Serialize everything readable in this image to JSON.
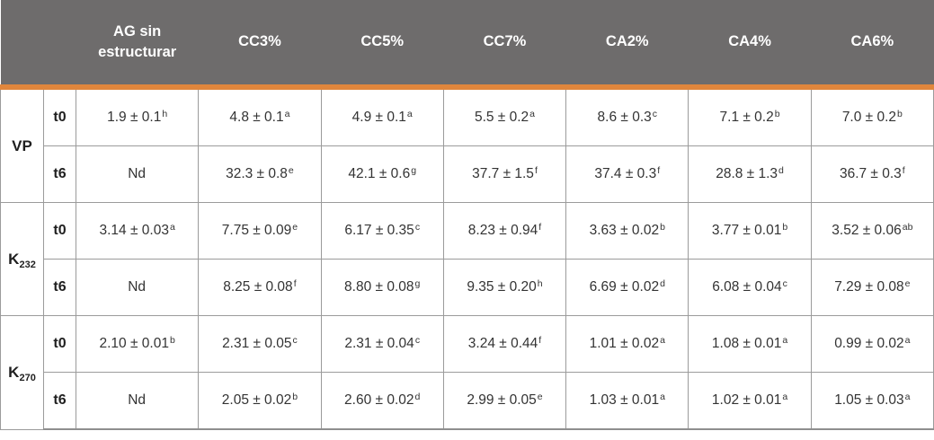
{
  "colors": {
    "header_bg": "#6E6C6C",
    "header_text": "#FFFFFF",
    "accent_band": "#E0863C",
    "grid_border": "#9B9B9B",
    "body_text": "#333333"
  },
  "chart_data": {
    "type": "table",
    "columns": [
      "AG sin estructurar",
      "CC3%",
      "CC5%",
      "CC7%",
      "CA2%",
      "CA4%",
      "CA6%"
    ],
    "row_groups": [
      {
        "name": "VP",
        "sub": "",
        "rows": [
          {
            "time": "t0",
            "cells": [
              {
                "v": "1.9 ± 0.1",
                "s": "h"
              },
              {
                "v": "4.8 ± 0.1",
                "s": "a"
              },
              {
                "v": "4.9 ± 0.1",
                "s": "a"
              },
              {
                "v": "5.5 ± 0.2",
                "s": "a"
              },
              {
                "v": "8.6 ± 0.3",
                "s": "c"
              },
              {
                "v": "7.1 ± 0.2",
                "s": "b"
              },
              {
                "v": "7.0 ± 0.2",
                "s": "b"
              }
            ]
          },
          {
            "time": "t6",
            "cells": [
              {
                "v": "Nd",
                "s": ""
              },
              {
                "v": "32.3 ± 0.8",
                "s": "e"
              },
              {
                "v": "42.1 ± 0.6",
                "s": "g"
              },
              {
                "v": "37.7 ± 1.5",
                "s": "f"
              },
              {
                "v": "37.4 ± 0.3",
                "s": "f"
              },
              {
                "v": "28.8 ± 1.3",
                "s": "d"
              },
              {
                "v": "36.7 ± 0.3",
                "s": "f"
              }
            ]
          }
        ]
      },
      {
        "name": "K",
        "sub": "232",
        "rows": [
          {
            "time": "t0",
            "cells": [
              {
                "v": "3.14 ± 0.03",
                "s": "a"
              },
              {
                "v": "7.75 ± 0.09",
                "s": "e"
              },
              {
                "v": "6.17 ± 0.35",
                "s": "c"
              },
              {
                "v": "8.23 ± 0.94",
                "s": "f"
              },
              {
                "v": "3.63 ± 0.02",
                "s": "b"
              },
              {
                "v": "3.77 ± 0.01",
                "s": "b"
              },
              {
                "v": "3.52 ± 0.06",
                "s": "ab"
              }
            ]
          },
          {
            "time": "t6",
            "cells": [
              {
                "v": "Nd",
                "s": ""
              },
              {
                "v": "8.25 ± 0.08",
                "s": "f"
              },
              {
                "v": "8.80 ± 0.08",
                "s": "g"
              },
              {
                "v": "9.35 ± 0.20",
                "s": "h"
              },
              {
                "v": "6.69 ± 0.02",
                "s": "d"
              },
              {
                "v": "6.08 ± 0.04",
                "s": "c"
              },
              {
                "v": "7.29 ± 0.08",
                "s": "e"
              }
            ]
          }
        ]
      },
      {
        "name": "K",
        "sub": "270",
        "rows": [
          {
            "time": "t0",
            "cells": [
              {
                "v": "2.10 ± 0.01",
                "s": "b"
              },
              {
                "v": "2.31 ± 0.05",
                "s": "c"
              },
              {
                "v": "2.31 ± 0.04",
                "s": "c"
              },
              {
                "v": "3.24 ± 0.44",
                "s": "f"
              },
              {
                "v": "1.01 ± 0.02",
                "s": "a"
              },
              {
                "v": "1.08 ± 0.01",
                "s": "a"
              },
              {
                "v": "0.99 ± 0.02",
                "s": "a"
              }
            ]
          },
          {
            "time": "t6",
            "cells": [
              {
                "v": "Nd",
                "s": ""
              },
              {
                "v": "2.05 ± 0.02",
                "s": "b"
              },
              {
                "v": "2.60 ± 0.02",
                "s": "d"
              },
              {
                "v": "2.99 ± 0.05",
                "s": "e"
              },
              {
                "v": "1.03 ± 0.01",
                "s": "a"
              },
              {
                "v": "1.02 ± 0.01",
                "s": "a"
              },
              {
                "v": "1.05 ± 0.03",
                "s": "a"
              }
            ]
          }
        ]
      }
    ]
  }
}
